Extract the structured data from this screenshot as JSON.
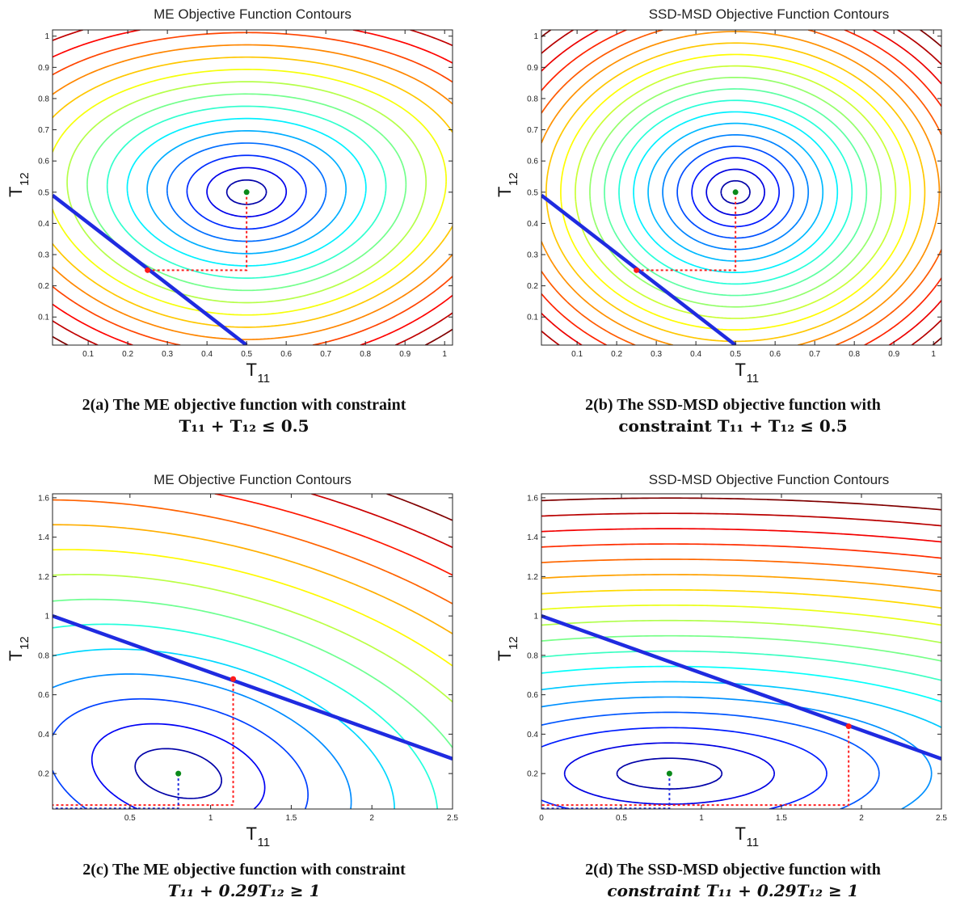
{
  "chart_data": [
    {
      "type": "contour",
      "title": "ME Objective Function Contours",
      "xlabel": "T",
      "xlabel_sub": "11",
      "ylabel": "T",
      "ylabel_sub": "12",
      "xlim": [
        0.01,
        1.02
      ],
      "ylim": [
        0.01,
        1.02
      ],
      "xticks": [
        0.1,
        0.2,
        0.3,
        0.4,
        0.5,
        0.6,
        0.7,
        0.8,
        0.9,
        1
      ],
      "yticks": [
        0.1,
        0.2,
        0.3,
        0.4,
        0.5,
        0.6,
        0.7,
        0.8,
        0.9,
        1
      ],
      "xtick_labels": [
        "0.1",
        "0.2",
        "0.3",
        "0.4",
        "0.5",
        "0.6",
        "0.7",
        "0.8",
        "0.9",
        "1"
      ],
      "ytick_labels": [
        "0.1",
        "0.2",
        "0.3",
        "0.4",
        "0.5",
        "0.6",
        "0.7",
        "0.8",
        "0.9",
        "1"
      ],
      "unconstrained_optimum": [
        0.5,
        0.5
      ],
      "constrained_optimum": [
        0.25,
        0.25
      ],
      "constraint_line": [
        [
          0.01,
          0.49
        ],
        [
          0.5,
          0.01
        ]
      ],
      "caption_prefix": "2(a) The ME objective function with constraint",
      "caption_math": "T₁₁ + T₁₂ ≤ 0.5"
    },
    {
      "type": "contour",
      "title": "SSD-MSD Objective Function Contours",
      "xlabel": "T",
      "xlabel_sub": "11",
      "ylabel": "T",
      "ylabel_sub": "12",
      "xlim": [
        0.01,
        1.02
      ],
      "ylim": [
        0.01,
        1.02
      ],
      "xticks": [
        0.1,
        0.2,
        0.3,
        0.4,
        0.5,
        0.6,
        0.7,
        0.8,
        0.9,
        1
      ],
      "yticks": [
        0.1,
        0.2,
        0.3,
        0.4,
        0.5,
        0.6,
        0.7,
        0.8,
        0.9,
        1
      ],
      "xtick_labels": [
        "0.1",
        "0.2",
        "0.3",
        "0.4",
        "0.5",
        "0.6",
        "0.7",
        "0.8",
        "0.9",
        "1"
      ],
      "ytick_labels": [
        "0.1",
        "0.2",
        "0.3",
        "0.4",
        "0.5",
        "0.6",
        "0.7",
        "0.8",
        "0.9",
        "1"
      ],
      "unconstrained_optimum": [
        0.5,
        0.5
      ],
      "constrained_optimum": [
        0.25,
        0.25
      ],
      "constraint_line": [
        [
          0.01,
          0.49
        ],
        [
          0.5,
          0.01
        ]
      ],
      "caption_prefix": "2(b) The SSD-MSD objective function with",
      "caption_math": "constraint T₁₁ + T₁₂ ≤ 0.5"
    },
    {
      "type": "contour",
      "title": "ME Objective Function Contours",
      "xlabel": "T",
      "xlabel_sub": "11",
      "ylabel": "T",
      "ylabel_sub": "12",
      "xlim": [
        0.02,
        2.5
      ],
      "ylim": [
        0.02,
        1.62
      ],
      "xticks": [
        0.5,
        1,
        1.5,
        2,
        2.5
      ],
      "yticks": [
        0.2,
        0.4,
        0.6,
        0.8,
        1,
        1.2,
        1.4,
        1.6
      ],
      "xtick_labels": [
        "0.5",
        "1",
        "1.5",
        "2",
        "2.5"
      ],
      "ytick_labels": [
        "0.2",
        "0.4",
        "0.6",
        "0.8",
        "1",
        "1.2",
        "1.4",
        "1.6"
      ],
      "unconstrained_optimum": [
        0.8,
        0.2
      ],
      "constrained_optimum": [
        1.14,
        0.68
      ],
      "constraint_line": [
        [
          0.02,
          1.0
        ],
        [
          2.5,
          0.275
        ]
      ],
      "caption_prefix": "2(c) The ME objective function with constraint",
      "caption_math": "T₁₁ + 0.29T₁₂ ≥ 1"
    },
    {
      "type": "contour",
      "title": "SSD-MSD Objective Function Contours",
      "xlabel": "T",
      "xlabel_sub": "11",
      "ylabel": "T",
      "ylabel_sub": "12",
      "xlim": [
        0,
        2.5
      ],
      "ylim": [
        0.02,
        1.62
      ],
      "xticks": [
        0,
        0.5,
        1,
        1.5,
        2,
        2.5
      ],
      "yticks": [
        0.2,
        0.4,
        0.6,
        0.8,
        1,
        1.2,
        1.4,
        1.6
      ],
      "xtick_labels": [
        "0",
        "0.5",
        "1",
        "1.5",
        "2",
        "2.5"
      ],
      "ytick_labels": [
        "0.2",
        "0.4",
        "0.6",
        "0.8",
        "1",
        "1.2",
        "1.4",
        "1.6"
      ],
      "unconstrained_optimum": [
        0.8,
        0.2
      ],
      "constrained_optimum": [
        1.92,
        0.44
      ],
      "constraint_line": [
        [
          0,
          1.0
        ],
        [
          2.5,
          0.275
        ]
      ],
      "caption_prefix": "2(d) The SSD-MSD objective function with",
      "caption_math": "constraint T₁₁ + 0.29T₁₂ ≥ 1"
    }
  ]
}
